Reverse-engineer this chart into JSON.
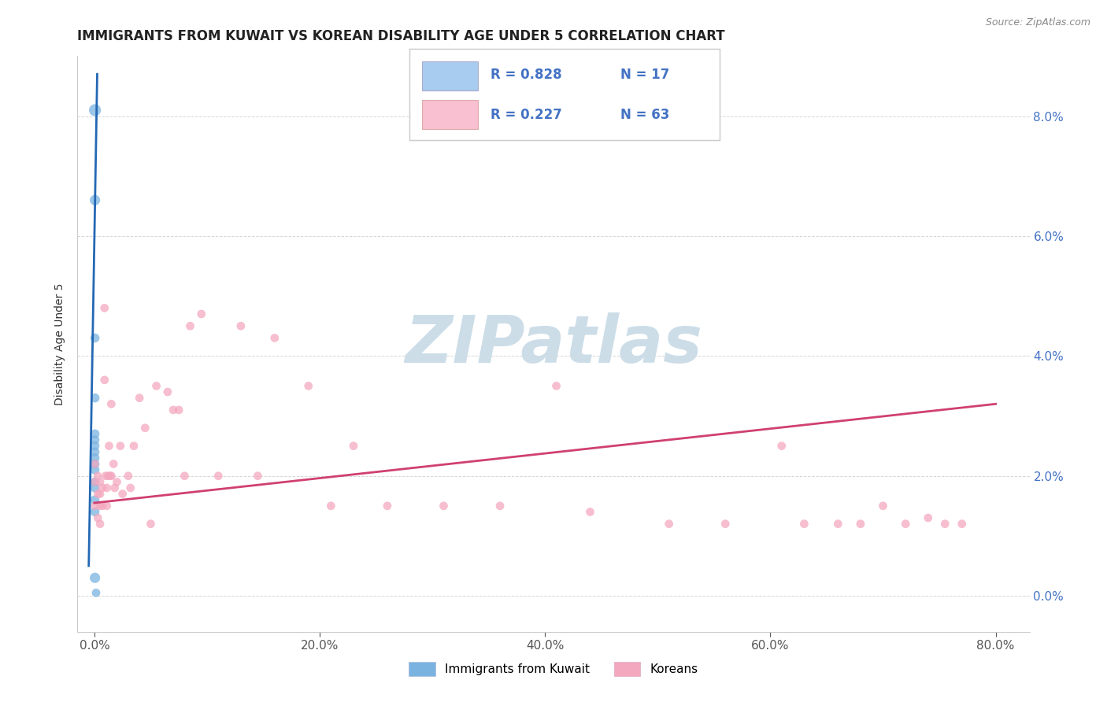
{
  "title": "IMMIGRANTS FROM KUWAIT VS KOREAN DISABILITY AGE UNDER 5 CORRELATION CHART",
  "source": "Source: ZipAtlas.com",
  "ylabel": "Disability Age Under 5",
  "x_tick_labels": [
    "0.0%",
    "20.0%",
    "40.0%",
    "60.0%",
    "80.0%"
  ],
  "x_tick_values": [
    0.0,
    20.0,
    40.0,
    60.0,
    80.0
  ],
  "y_tick_labels_right": [
    "0.0%",
    "2.0%",
    "4.0%",
    "6.0%",
    "8.0%"
  ],
  "y_tick_values": [
    0.0,
    2.0,
    4.0,
    6.0,
    8.0
  ],
  "xlim": [
    -1.5,
    83.0
  ],
  "ylim": [
    -0.6,
    9.0
  ],
  "blue_scatter_x": [
    0.05,
    0.05,
    0.05,
    0.05,
    0.05,
    0.05,
    0.05,
    0.05,
    0.05,
    0.05,
    0.05,
    0.05,
    0.05,
    0.05,
    0.05,
    0.05,
    0.15
  ],
  "blue_scatter_y": [
    8.1,
    6.6,
    4.3,
    3.3,
    2.7,
    2.6,
    2.5,
    2.4,
    2.3,
    2.2,
    2.1,
    1.9,
    1.8,
    1.6,
    1.4,
    0.3,
    0.05
  ],
  "blue_scatter_sizes": [
    120,
    90,
    70,
    70,
    70,
    70,
    70,
    70,
    70,
    70,
    70,
    70,
    70,
    70,
    70,
    90,
    60
  ],
  "pink_scatter_x": [
    0.05,
    0.05,
    0.05,
    0.3,
    0.3,
    0.3,
    0.5,
    0.5,
    0.5,
    0.5,
    0.7,
    0.7,
    0.9,
    0.9,
    1.0,
    1.1,
    1.1,
    1.2,
    1.3,
    1.4,
    1.5,
    1.5,
    1.7,
    1.8,
    2.0,
    2.3,
    2.5,
    3.0,
    3.2,
    3.5,
    4.0,
    4.5,
    5.0,
    5.5,
    6.5,
    7.0,
    7.5,
    8.0,
    8.5,
    9.5,
    11.0,
    13.0,
    14.5,
    16.0,
    19.0,
    21.0,
    23.0,
    26.0,
    31.0,
    36.0,
    41.0,
    44.0,
    51.0,
    56.0,
    61.0,
    63.0,
    66.0,
    68.0,
    70.0,
    72.0,
    74.0,
    75.5,
    77.0
  ],
  "pink_scatter_y": [
    2.2,
    1.9,
    1.5,
    2.0,
    1.7,
    1.3,
    1.9,
    1.7,
    1.5,
    1.2,
    1.8,
    1.5,
    4.8,
    3.6,
    2.0,
    1.8,
    1.5,
    2.0,
    2.5,
    2.0,
    3.2,
    2.0,
    2.2,
    1.8,
    1.9,
    2.5,
    1.7,
    2.0,
    1.8,
    2.5,
    3.3,
    2.8,
    1.2,
    3.5,
    3.4,
    3.1,
    3.1,
    2.0,
    4.5,
    4.7,
    2.0,
    4.5,
    2.0,
    4.3,
    3.5,
    1.5,
    2.5,
    1.5,
    1.5,
    1.5,
    3.5,
    1.4,
    1.2,
    1.2,
    2.5,
    1.2,
    1.2,
    1.2,
    1.5,
    1.2,
    1.3,
    1.2,
    1.2
  ],
  "pink_scatter_sizes": [
    60,
    60,
    60,
    60,
    60,
    60,
    60,
    60,
    60,
    60,
    60,
    60,
    60,
    60,
    60,
    60,
    60,
    60,
    60,
    60,
    60,
    60,
    60,
    60,
    60,
    60,
    60,
    60,
    60,
    60,
    60,
    60,
    60,
    60,
    60,
    60,
    60,
    60,
    60,
    60,
    60,
    60,
    60,
    60,
    60,
    60,
    60,
    60,
    60,
    60,
    60,
    60,
    60,
    60,
    60,
    60,
    60,
    60,
    60,
    60,
    60,
    60,
    60
  ],
  "blue_line_x": [
    -0.5,
    0.25
  ],
  "blue_line_y": [
    0.5,
    8.7
  ],
  "pink_line_x": [
    0.0,
    80.0
  ],
  "pink_line_y": [
    1.55,
    3.2
  ],
  "blue_color": "#7ab3e0",
  "pink_color": "#f4a8c0",
  "blue_line_color": "#2468b4",
  "pink_line_color": "#d04070",
  "legend_blue_patch": "#a8ccf0",
  "legend_pink_patch": "#f8c0d0",
  "watermark": "ZIPatlas",
  "watermark_color": "#ccdde8",
  "grid_color": "#cccccc",
  "background_color": "#ffffff",
  "title_fontsize": 12,
  "axis_label_fontsize": 10,
  "tick_fontsize": 11,
  "legend_text_color_blue": "#4472c4",
  "legend_text_color_pink": "#d04070",
  "r_blue": "R = 0.828",
  "n_blue": "N = 17",
  "r_pink": "R = 0.227",
  "n_pink": "N = 63",
  "bottom_legend_blue": "Immigrants from Kuwait",
  "bottom_legend_pink": "Koreans"
}
